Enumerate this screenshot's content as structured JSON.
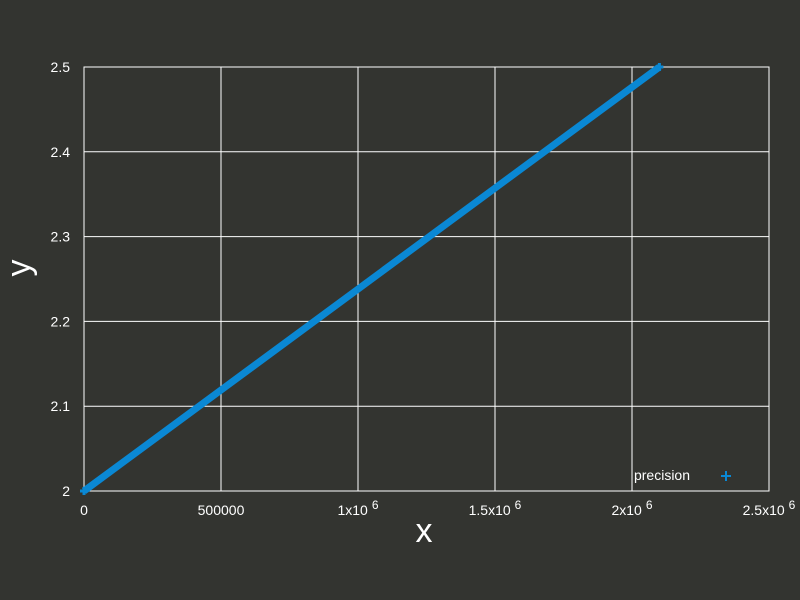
{
  "chart_data": {
    "type": "scatter",
    "xlabel": "x",
    "ylabel": "y",
    "xlim": [
      0,
      2500000
    ],
    "ylim": [
      2,
      2.5
    ],
    "grid": true,
    "legend_position": "bottom-right",
    "x_ticks": [
      {
        "value": 0,
        "mantissa": "0",
        "exp": ""
      },
      {
        "value": 500000,
        "mantissa": "500000",
        "exp": ""
      },
      {
        "value": 1000000,
        "mantissa": "1x10",
        "exp": "6"
      },
      {
        "value": 1500000,
        "mantissa": "1.5x10",
        "exp": "6"
      },
      {
        "value": 2000000,
        "mantissa": "2x10",
        "exp": "6"
      },
      {
        "value": 2500000,
        "mantissa": "2.5x10",
        "exp": "6"
      }
    ],
    "y_ticks": [
      {
        "value": 2,
        "label": "2"
      },
      {
        "value": 2.1,
        "label": "2.1"
      },
      {
        "value": 2.2,
        "label": "2.2"
      },
      {
        "value": 2.3,
        "label": "2.3"
      },
      {
        "value": 2.4,
        "label": "2.4"
      },
      {
        "value": 2.5,
        "label": "2.5"
      }
    ],
    "series": [
      {
        "name": "precision",
        "color": "#0a88d4",
        "x_range": [
          0,
          2100000
        ],
        "y_range": [
          2,
          2.5
        ],
        "marker": "plus"
      }
    ]
  }
}
